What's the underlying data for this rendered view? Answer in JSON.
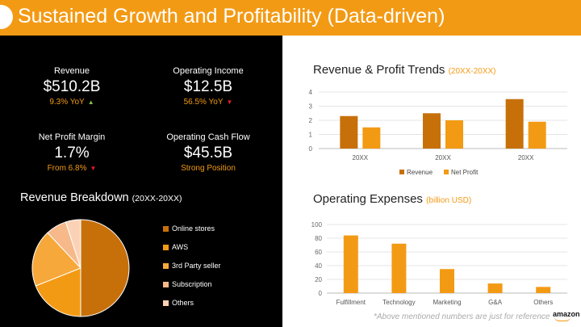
{
  "header": {
    "title": "Sustained Growth and Profitability (Data-driven)"
  },
  "kpis": {
    "revenue": {
      "label": "Revenue",
      "value": "$510.2B",
      "sub": "9.3% YoY",
      "trend": "up"
    },
    "operating_income": {
      "label": "Operating Income",
      "value": "$12.5B",
      "sub": "56.5% YoY",
      "trend": "down"
    },
    "net_profit_margin": {
      "label": "Net Profit Margin",
      "value": "1.7%",
      "sub": "From 6.8%",
      "trend": "down"
    },
    "operating_cash_flow": {
      "label": "Operating Cash Flow",
      "value": "$45.5B",
      "sub": "Strong Position",
      "trend": "none"
    }
  },
  "breakdown": {
    "title": "Revenue Breakdown",
    "subtitle": "(20XX-20XX)"
  },
  "trends": {
    "title": "Revenue & Profit Trends",
    "subtitle": "(20XX-20XX)"
  },
  "opex": {
    "title": "Operating Expenses",
    "subtitle": "(billion USD)"
  },
  "footnote": "*Above mentioned numbers are just for reference",
  "logo": "amazon",
  "colors": {
    "accent": "#f39a14",
    "dark_orange": "#c7700a",
    "light_orange": "#f7b98a",
    "peach": "#fbd2b6"
  },
  "chart_data": [
    {
      "type": "pie",
      "categories": [
        "Online stores",
        "AWS",
        "3rd Party seller",
        "Subscription",
        "Others"
      ],
      "values": [
        50,
        19,
        19,
        7,
        5
      ],
      "colors": [
        "#c7700a",
        "#f39a14",
        "#f7a83a",
        "#f7b98a",
        "#fbd2b6"
      ]
    },
    {
      "type": "bar",
      "categories": [
        "20XX",
        "20XX",
        "20XX"
      ],
      "series": [
        {
          "name": "Revenue",
          "values": [
            2.3,
            2.5,
            3.5
          ],
          "color": "#c7700a"
        },
        {
          "name": "Net Profit",
          "values": [
            1.5,
            2.0,
            1.9
          ],
          "color": "#f39a14"
        }
      ],
      "ylim": [
        0,
        4
      ],
      "yticks": [
        0,
        1,
        2,
        3,
        4
      ],
      "legend": "bottom"
    },
    {
      "type": "bar",
      "categories": [
        "Fulfillment",
        "Technology",
        "Marketing",
        "G&A",
        "Others"
      ],
      "values": [
        84,
        72,
        35,
        14,
        9
      ],
      "color": "#f39a14",
      "ylim": [
        0,
        100
      ],
      "yticks": [
        0,
        20,
        40,
        60,
        80,
        100
      ]
    }
  ]
}
